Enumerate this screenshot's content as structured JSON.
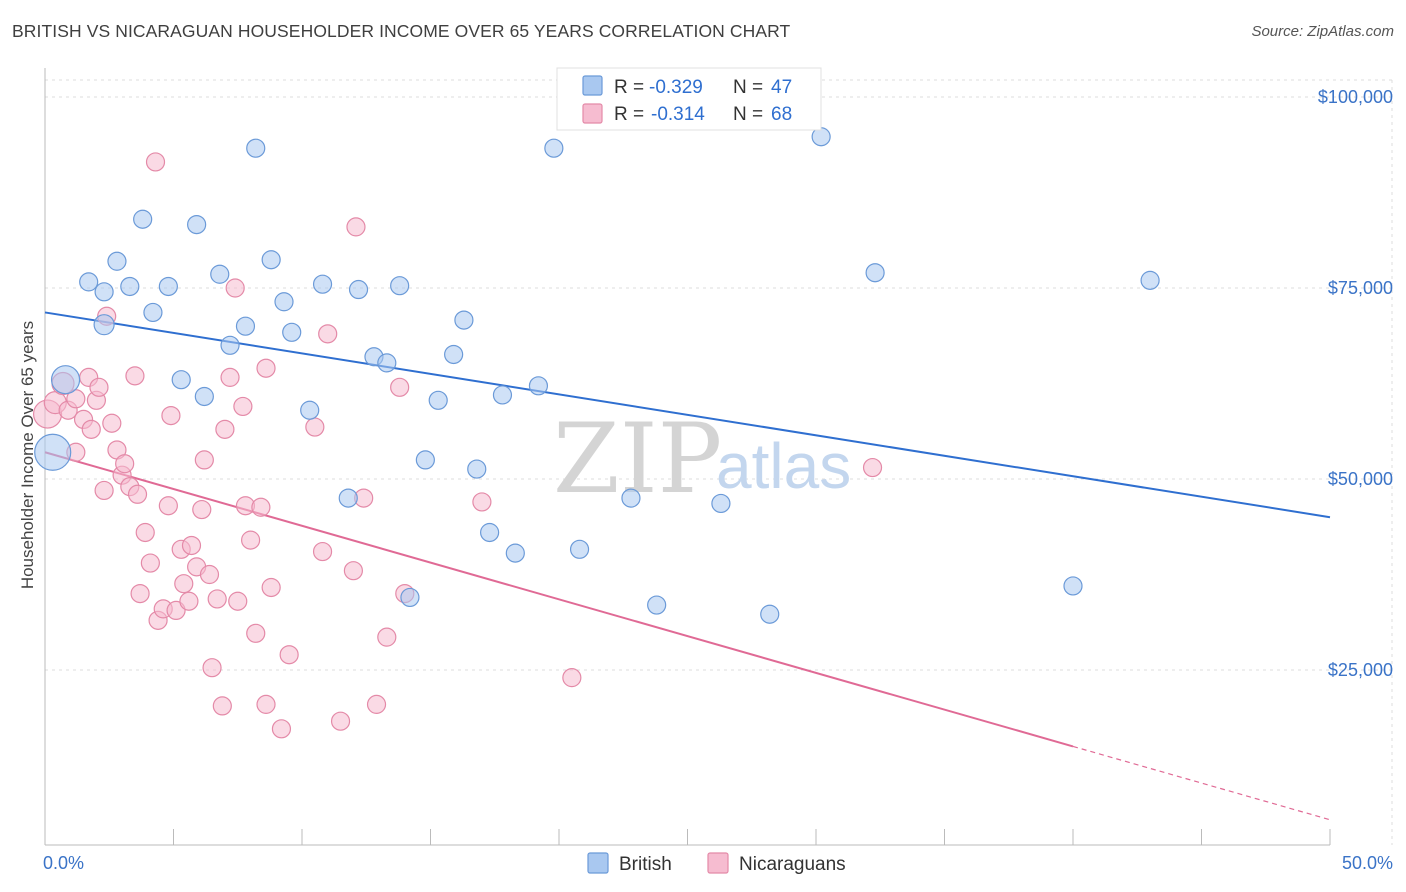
{
  "header": {
    "title": "BRITISH VS NICARAGUAN HOUSEHOLDER INCOME OVER 65 YEARS CORRELATION CHART",
    "source": "Source: ZipAtlas.com"
  },
  "watermark": {
    "zip": "ZIP",
    "atlas": "atlas"
  },
  "legend_top": [
    {
      "r_label": "R =",
      "r_value": "-0.329",
      "n_label": "N =",
      "n_value": "47",
      "color": "#a9c8f0",
      "stroke": "#6b9ad8"
    },
    {
      "r_label": "R =",
      "r_value": "-0.314",
      "n_label": "N =",
      "n_value": "68",
      "color": "#f6bcd0",
      "stroke": "#e48aa8"
    }
  ],
  "legend_bottom": [
    {
      "label": "British",
      "color": "#a9c8f0",
      "stroke": "#6b9ad8"
    },
    {
      "label": "Nicaraguans",
      "color": "#f6bcd0",
      "stroke": "#e48aa8"
    }
  ],
  "axes": {
    "ylabel": "Householder Income Over 65 years",
    "x_min_label": "0.0%",
    "x_max_label": "50.0%",
    "y_ticks": [
      {
        "value": 100000,
        "label": "$100,000"
      },
      {
        "value": 75000,
        "label": "$75,000"
      },
      {
        "value": 50000,
        "label": "$50,000"
      },
      {
        "value": 25000,
        "label": "$25,000"
      }
    ]
  },
  "chart_data": {
    "type": "scatter",
    "title": "BRITISH VS NICARAGUAN HOUSEHOLDER INCOME OVER 65 YEARS CORRELATION CHART",
    "xlabel": "",
    "ylabel": "Householder Income Over 65 years",
    "xlim": [
      0,
      50
    ],
    "ylim": [
      0,
      102000
    ],
    "grid": true,
    "legend_position": "top-center",
    "series": [
      {
        "name": "British",
        "color": "#6b9ad8",
        "fill": "#a9c8f0",
        "line_color": "#2f6fd0",
        "trend": {
          "x": [
            0,
            50
          ],
          "y": [
            71800,
            45000
          ]
        },
        "points": [
          [
            0.3,
            53500,
            18
          ],
          [
            0.8,
            63000,
            14
          ],
          [
            2.3,
            70200,
            10
          ],
          [
            1.7,
            75800,
            9
          ],
          [
            2.3,
            74500,
            9
          ],
          [
            2.8,
            78500,
            9
          ],
          [
            3.3,
            75200,
            9
          ],
          [
            3.8,
            84000,
            9
          ],
          [
            4.2,
            71800,
            9
          ],
          [
            4.8,
            75200,
            9
          ],
          [
            5.3,
            63000,
            9
          ],
          [
            5.9,
            83300,
            9
          ],
          [
            6.2,
            60800,
            9
          ],
          [
            6.8,
            76800,
            9
          ],
          [
            7.2,
            67500,
            9
          ],
          [
            7.8,
            70000,
            9
          ],
          [
            8.2,
            93300,
            9
          ],
          [
            8.8,
            78700,
            9
          ],
          [
            9.3,
            73200,
            9
          ],
          [
            9.6,
            69200,
            9
          ],
          [
            10.3,
            59000,
            9
          ],
          [
            10.8,
            75500,
            9
          ],
          [
            11.8,
            47500,
            9
          ],
          [
            12.2,
            74800,
            9
          ],
          [
            12.8,
            66000,
            9
          ],
          [
            13.3,
            65200,
            9
          ],
          [
            13.8,
            75300,
            9
          ],
          [
            14.2,
            34500,
            9
          ],
          [
            14.8,
            52500,
            9
          ],
          [
            15.3,
            60300,
            9
          ],
          [
            15.9,
            66300,
            9
          ],
          [
            16.3,
            70800,
            9
          ],
          [
            16.8,
            51300,
            9
          ],
          [
            17.3,
            43000,
            9
          ],
          [
            17.8,
            61000,
            9
          ],
          [
            18.3,
            40300,
            9
          ],
          [
            19.2,
            62200,
            9
          ],
          [
            19.8,
            93300,
            9
          ],
          [
            20.8,
            40800,
            9
          ],
          [
            22.8,
            47500,
            9
          ],
          [
            23.8,
            33500,
            9
          ],
          [
            26.3,
            46800,
            9
          ],
          [
            28.2,
            32300,
            9
          ],
          [
            30.2,
            94800,
            9
          ],
          [
            32.3,
            77000,
            9
          ],
          [
            40.0,
            36000,
            9
          ],
          [
            43.0,
            76000,
            9
          ]
        ]
      },
      {
        "name": "Nicaraguans",
        "color": "#e48aa8",
        "fill": "#f6bcd0",
        "line_color": "#e06a95",
        "trend": {
          "x": [
            0,
            40
          ],
          "y": [
            53500,
            15000
          ]
        },
        "trend_dashed": {
          "x": [
            40,
            50
          ],
          "y": [
            15000,
            5400
          ]
        },
        "points": [
          [
            0.1,
            58500,
            14
          ],
          [
            0.4,
            60000,
            11
          ],
          [
            0.7,
            62500,
            11
          ],
          [
            0.9,
            59000,
            9
          ],
          [
            1.2,
            53500,
            9
          ],
          [
            1.2,
            60500,
            9
          ],
          [
            1.5,
            57800,
            9
          ],
          [
            1.7,
            63300,
            9
          ],
          [
            1.8,
            56500,
            9
          ],
          [
            2.0,
            60300,
            9
          ],
          [
            2.1,
            62000,
            9
          ],
          [
            2.3,
            48500,
            9
          ],
          [
            2.4,
            71300,
            9
          ],
          [
            2.6,
            57300,
            9
          ],
          [
            2.8,
            53800,
            9
          ],
          [
            3.0,
            50500,
            9
          ],
          [
            3.1,
            52000,
            9
          ],
          [
            3.3,
            49000,
            9
          ],
          [
            3.5,
            63500,
            9
          ],
          [
            3.6,
            48000,
            9
          ],
          [
            3.7,
            35000,
            9
          ],
          [
            3.9,
            43000,
            9
          ],
          [
            4.1,
            39000,
            9
          ],
          [
            4.3,
            91500,
            9
          ],
          [
            4.4,
            31500,
            9
          ],
          [
            4.6,
            33000,
            9
          ],
          [
            4.8,
            46500,
            9
          ],
          [
            4.9,
            58300,
            9
          ],
          [
            5.1,
            32800,
            9
          ],
          [
            5.3,
            40800,
            9
          ],
          [
            5.4,
            36300,
            9
          ],
          [
            5.6,
            34000,
            9
          ],
          [
            5.7,
            41300,
            9
          ],
          [
            5.9,
            38500,
            9
          ],
          [
            6.1,
            46000,
            9
          ],
          [
            6.2,
            52500,
            9
          ],
          [
            6.4,
            37500,
            9
          ],
          [
            6.5,
            25300,
            9
          ],
          [
            6.7,
            34300,
            9
          ],
          [
            6.9,
            20300,
            9
          ],
          [
            7.0,
            56500,
            9
          ],
          [
            7.2,
            63300,
            9
          ],
          [
            7.4,
            75000,
            9
          ],
          [
            7.5,
            34000,
            9
          ],
          [
            7.7,
            59500,
            9
          ],
          [
            7.8,
            46500,
            9
          ],
          [
            8.0,
            42000,
            9
          ],
          [
            8.2,
            29800,
            9
          ],
          [
            8.4,
            46300,
            9
          ],
          [
            8.6,
            64500,
            9
          ],
          [
            8.6,
            20500,
            9
          ],
          [
            8.8,
            35800,
            9
          ],
          [
            9.2,
            17300,
            9
          ],
          [
            9.5,
            27000,
            9
          ],
          [
            10.5,
            56800,
            9
          ],
          [
            10.8,
            40500,
            9
          ],
          [
            11.0,
            69000,
            9
          ],
          [
            11.5,
            18300,
            9
          ],
          [
            12.0,
            38000,
            9
          ],
          [
            12.1,
            83000,
            9
          ],
          [
            12.4,
            47500,
            9
          ],
          [
            12.9,
            20500,
            9
          ],
          [
            14.0,
            35000,
            9
          ],
          [
            13.3,
            29300,
            9
          ],
          [
            13.8,
            62000,
            9
          ],
          [
            20.5,
            24000,
            9
          ],
          [
            32.2,
            51500,
            9
          ],
          [
            17.0,
            47000,
            9
          ]
        ]
      }
    ]
  }
}
